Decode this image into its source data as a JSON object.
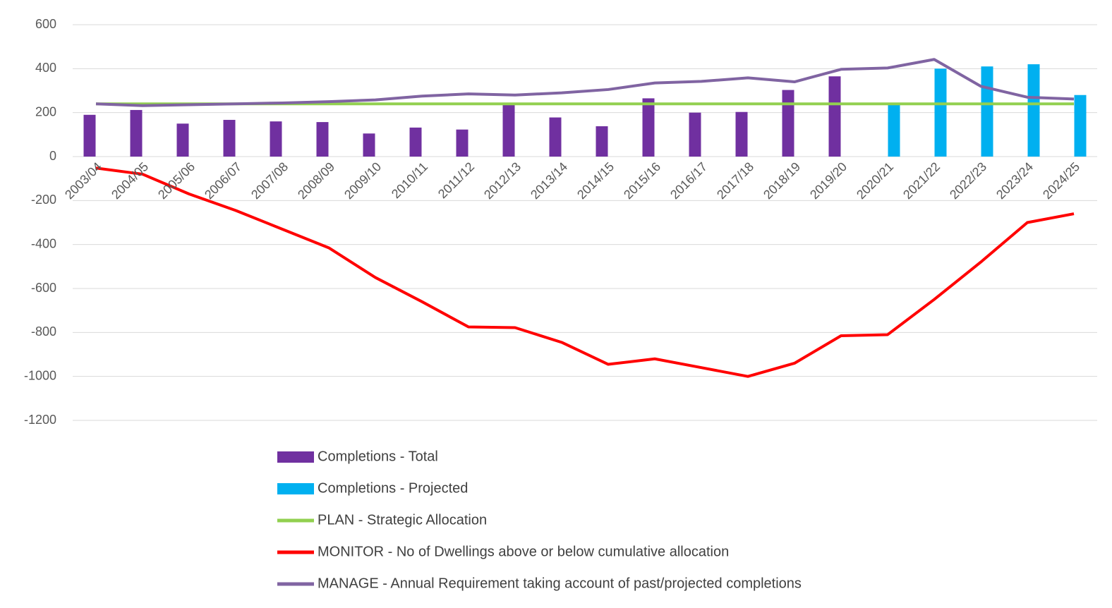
{
  "chart_data": {
    "type": "bar_line",
    "categories": [
      "2003/04",
      "2004/05",
      "2005/06",
      "2006/07",
      "2007/08",
      "2008/09",
      "2009/10",
      "2010/11",
      "2011/12",
      "2012/13",
      "2013/14",
      "2014/15",
      "2015/16",
      "2016/17",
      "2017/18",
      "2018/19",
      "2019/20",
      "2020/21",
      "2021/22",
      "2022/23",
      "2023/24",
      "2024/25"
    ],
    "series": [
      {
        "name": "Completions - Total",
        "kind": "bar",
        "color": "#7030a0",
        "values": [
          190,
          212,
          150,
          167,
          160,
          157,
          105,
          132,
          123,
          240,
          178,
          138,
          265,
          200,
          203,
          303,
          365,
          null,
          null,
          null,
          null,
          null
        ]
      },
      {
        "name": "Completions - Projected",
        "kind": "bar",
        "color": "#00b0f0",
        "values": [
          null,
          null,
          null,
          null,
          null,
          null,
          null,
          null,
          null,
          null,
          null,
          null,
          null,
          null,
          null,
          null,
          null,
          240,
          400,
          410,
          420,
          280
        ]
      },
      {
        "name": "PLAN - Strategic Allocation",
        "kind": "line",
        "color": "#92d050",
        "values": [
          240,
          240,
          240,
          240,
          240,
          240,
          240,
          240,
          240,
          240,
          240,
          240,
          240,
          240,
          240,
          240,
          240,
          240,
          240,
          240,
          240,
          240
        ]
      },
      {
        "name": "MONITOR - No of Dwellings above or below cumulative allocation",
        "kind": "line",
        "color": "#ff0000",
        "values": [
          -52,
          -80,
          -170,
          -245,
          -330,
          -415,
          -550,
          -660,
          -775,
          -778,
          -845,
          -945,
          -920,
          -960,
          -1000,
          -940,
          -815,
          -810,
          -650,
          -480,
          -300,
          -260
        ]
      },
      {
        "name": "MANAGE - Annual Requirement taking account of past/projected completions",
        "kind": "line",
        "color": "#8064a2",
        "values": [
          240,
          232,
          236,
          240,
          244,
          250,
          258,
          275,
          285,
          280,
          290,
          305,
          335,
          342,
          358,
          340,
          397,
          403,
          442,
          320,
          270,
          262
        ]
      }
    ],
    "ylim": [
      -1300,
      600
    ],
    "yticks": [
      600,
      400,
      200,
      0,
      -200,
      -400,
      -600,
      -800,
      -1000,
      -1200
    ],
    "grid": true,
    "legend": "bottom"
  }
}
